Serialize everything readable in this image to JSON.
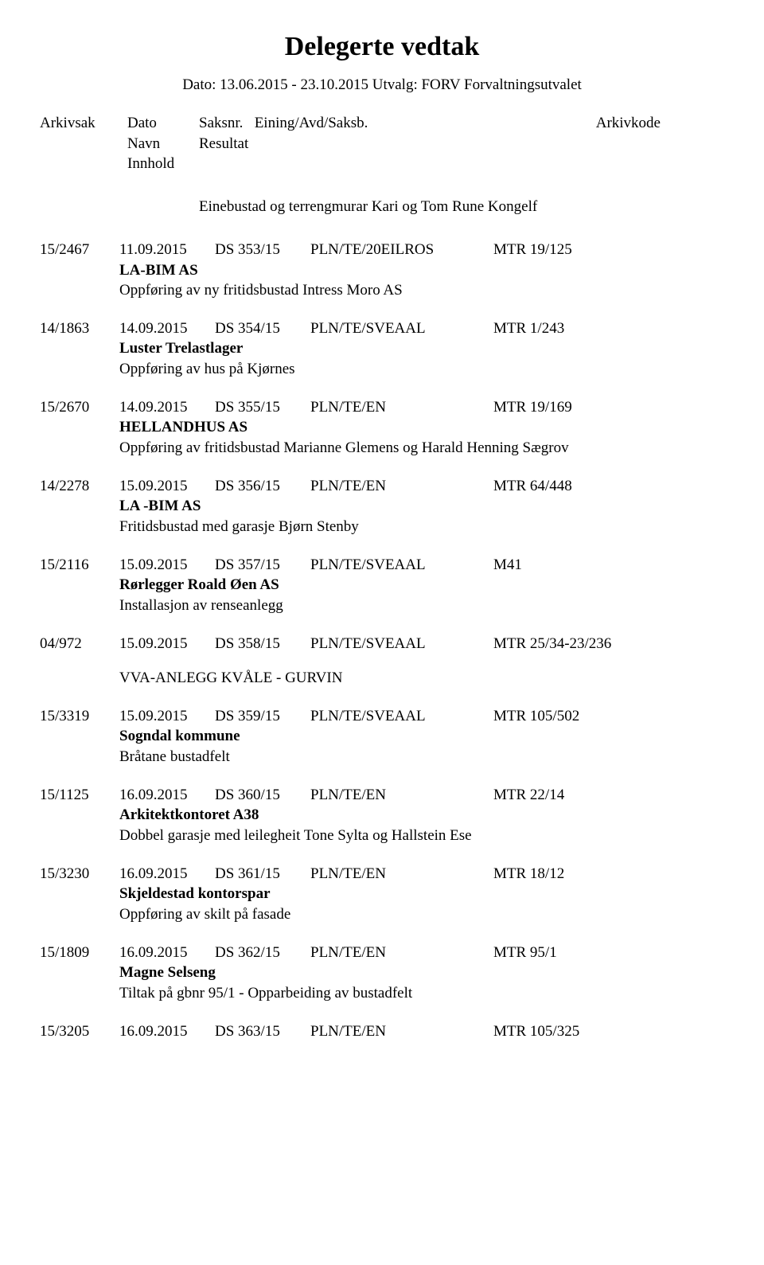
{
  "title": "Delegerte vedtak",
  "subtitle": "Dato: 13.06.2015 - 23.10.2015  Utvalg: FORV Forvaltningsutvalet",
  "header": {
    "arkivsak": "Arkivsak",
    "dato": "Dato",
    "saksnr": "Saksnr.",
    "eining": "Eining/Avd/Saksb.",
    "arkivkode": "Arkivkode",
    "navn": "Navn",
    "resultat": "Resultat",
    "innhold": "Innhold"
  },
  "intro": "Einebustad og terrengmurar Kari og Tom Rune Kongelf",
  "entries": [
    {
      "arkivsak": "15/2467",
      "dato": "11.09.2015",
      "saksnr": "DS  353/15",
      "eining": "PLN/TE/20EILROS",
      "arkivkode": "MTR 19/125",
      "party": "LA-BIM AS",
      "desc": "Oppføring av ny fritidsbustad Intress Moro AS"
    },
    {
      "arkivsak": "14/1863",
      "dato": "14.09.2015",
      "saksnr": "DS  354/15",
      "eining": "PLN/TE/SVEAAL",
      "arkivkode": "MTR 1/243",
      "party": "Luster Trelastlager",
      "desc": "Oppføring av hus på Kjørnes"
    },
    {
      "arkivsak": "15/2670",
      "dato": "14.09.2015",
      "saksnr": "DS  355/15",
      "eining": "PLN/TE/EN",
      "arkivkode": "MTR 19/169",
      "party": "HELLANDHUS AS",
      "desc": "Oppføring av fritidsbustad Marianne Glemens og Harald Henning Sægrov"
    },
    {
      "arkivsak": "14/2278",
      "dato": "15.09.2015",
      "saksnr": "DS  356/15",
      "eining": "PLN/TE/EN",
      "arkivkode": "MTR 64/448",
      "party": "LA -BIM AS",
      "desc": "Fritidsbustad med garasje Bjørn Stenby"
    },
    {
      "arkivsak": "15/2116",
      "dato": "15.09.2015",
      "saksnr": "DS  357/15",
      "eining": "PLN/TE/SVEAAL",
      "arkivkode": "M41",
      "party": "Rørlegger Roald Øen AS",
      "desc": "Installasjon av renseanlegg"
    },
    {
      "arkivsak": "04/972",
      "dato": "15.09.2015",
      "saksnr": "DS  358/15",
      "eining": "PLN/TE/SVEAAL",
      "arkivkode": "MTR 25/34-23/236",
      "party": "",
      "desc": "",
      "extra": "VVA-ANLEGG KVÅLE - GURVIN"
    },
    {
      "arkivsak": "15/3319",
      "dato": "15.09.2015",
      "saksnr": "DS  359/15",
      "eining": "PLN/TE/SVEAAL",
      "arkivkode": "MTR 105/502",
      "party": "Sogndal kommune",
      "desc": "Bråtane bustadfelt"
    },
    {
      "arkivsak": "15/1125",
      "dato": "16.09.2015",
      "saksnr": "DS  360/15",
      "eining": "PLN/TE/EN",
      "arkivkode": "MTR 22/14",
      "party": "Arkitektkontoret A38",
      "desc": "Dobbel garasje med leilegheit Tone Sylta og Hallstein Ese"
    },
    {
      "arkivsak": "15/3230",
      "dato": "16.09.2015",
      "saksnr": "DS  361/15",
      "eining": "PLN/TE/EN",
      "arkivkode": "MTR 18/12",
      "party": "Skjeldestad kontorspar",
      "desc": "Oppføring av skilt på fasade"
    },
    {
      "arkivsak": "15/1809",
      "dato": "16.09.2015",
      "saksnr": "DS  362/15",
      "eining": "PLN/TE/EN",
      "arkivkode": "MTR 95/1",
      "party": "Magne Selseng",
      "desc": "Tiltak på gbnr 95/1 - Opparbeiding av bustadfelt"
    },
    {
      "arkivsak": "15/3205",
      "dato": "16.09.2015",
      "saksnr": "DS  363/15",
      "eining": "PLN/TE/EN",
      "arkivkode": "MTR 105/325",
      "party": "",
      "desc": ""
    }
  ]
}
